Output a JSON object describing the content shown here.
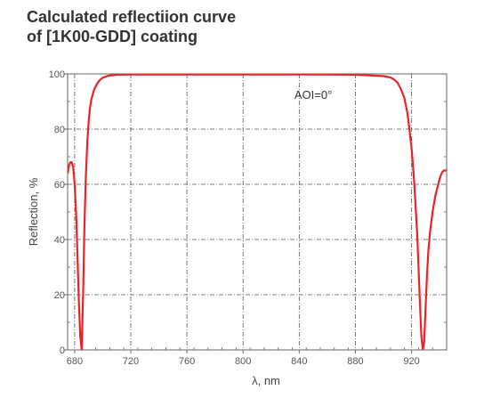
{
  "title_line1": "Calculated reflectiion curve",
  "title_line2": "of [1K00-GDD] coating",
  "chart_data": {
    "type": "line",
    "xlabel": "λ, nm",
    "ylabel": "Reflection, %",
    "xlim": [
      675,
      945
    ],
    "ylim": [
      0,
      100
    ],
    "xticks": [
      680,
      720,
      760,
      800,
      840,
      880,
      920
    ],
    "yticks": [
      0,
      20,
      40,
      60,
      80,
      100
    ],
    "grid": true,
    "annotation": "AOI=0°",
    "series_color": "#e8232a",
    "series": [
      {
        "x": [
          675,
          676,
          677,
          678,
          679,
          680,
          681,
          682,
          683,
          684,
          685,
          686,
          687,
          688,
          689,
          690,
          691,
          692,
          694,
          696,
          698,
          700,
          703,
          706,
          710,
          720,
          740,
          760,
          780,
          800,
          820,
          840,
          860,
          880,
          900,
          905,
          908,
          910,
          912,
          914,
          915,
          916,
          917,
          918,
          919,
          920,
          921,
          922,
          923,
          924,
          925,
          926,
          927,
          928,
          929,
          930,
          931,
          932,
          933,
          934,
          935,
          936,
          937,
          938,
          939,
          940,
          941,
          942,
          943,
          944,
          945
        ],
        "y": [
          64,
          67,
          68,
          68,
          66,
          60,
          50,
          35,
          18,
          5,
          0,
          20,
          45,
          63,
          75,
          83,
          88,
          91,
          94.5,
          96.5,
          97.8,
          98.6,
          99.2,
          99.5,
          99.7,
          99.8,
          99.8,
          99.8,
          99.8,
          99.8,
          99.8,
          99.8,
          99.8,
          99.7,
          99.2,
          98.7,
          97.8,
          96.8,
          95,
          92.5,
          91,
          88.5,
          86,
          82,
          77.5,
          73,
          67,
          60,
          51,
          42,
          30,
          17,
          5,
          0,
          3,
          15,
          27,
          36,
          42,
          46,
          50,
          53,
          56,
          58,
          60,
          62,
          63.5,
          64.5,
          65,
          65,
          65
        ]
      }
    ]
  }
}
